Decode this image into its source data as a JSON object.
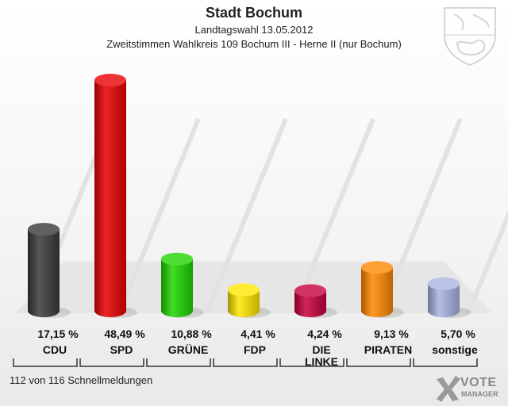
{
  "header": {
    "title": "Stadt Bochum",
    "subtitle": "Landtagswahl 13.05.2012",
    "subtitle2": "Zweitstimmen Wahlkreis 109 Bochum III - Herne II (nur Bochum)"
  },
  "footnote": "112 von 116 Schnellmeldungen",
  "logo": {
    "line1": "VOTE",
    "line2": "MANAGER",
    "icon": "vote-x-icon"
  },
  "crest": {
    "icon": "coat-of-arms-icon"
  },
  "chart_data": {
    "type": "bar",
    "title": "Stadt Bochum",
    "categories": [
      "CDU",
      "SPD",
      "GRÜNE",
      "FDP",
      "DIE LINKE",
      "PIRATEN",
      "sonstige"
    ],
    "category_lines": [
      [
        "CDU"
      ],
      [
        "SPD"
      ],
      [
        "GRÜNE"
      ],
      [
        "FDP"
      ],
      [
        "DIE",
        "LINKE"
      ],
      [
        "PIRATEN"
      ],
      [
        "sonstige"
      ]
    ],
    "values": [
      17.15,
      48.49,
      10.88,
      4.41,
      4.24,
      9.13,
      5.7
    ],
    "value_labels": [
      "17,15 %",
      "48,49 %",
      "10,88 %",
      "4,41 %",
      "4,24 %",
      "9,13 %",
      "5,70 %"
    ],
    "colors": [
      "#3a3a3a",
      "#e80000",
      "#1fd600",
      "#ffe600",
      "#c8003c",
      "#ff8800",
      "#a7b4e0"
    ],
    "unit": "%",
    "ylim": [
      0,
      50
    ],
    "grid": false,
    "legend": "none"
  }
}
